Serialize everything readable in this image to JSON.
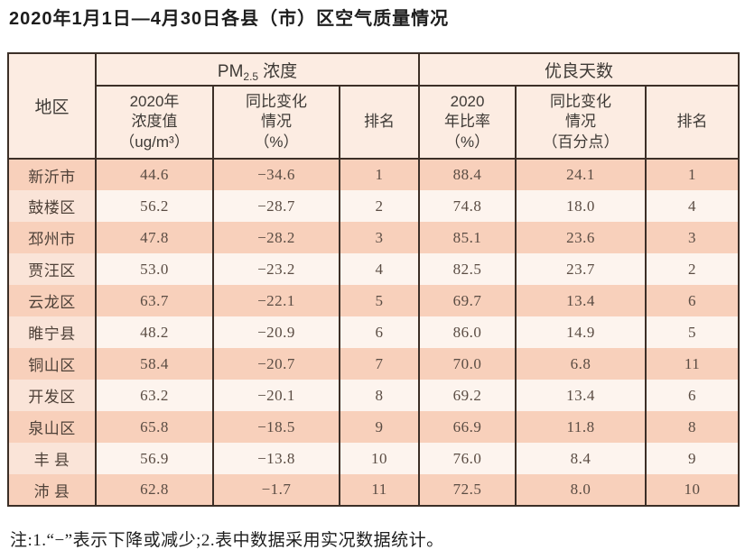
{
  "title": "2020年1月1日—4月30日各县（市）区空气质量情况",
  "header": {
    "region": "地区",
    "pm25_group": {
      "prefix": "PM",
      "subscript": "2.5",
      "suffix": "浓度"
    },
    "good_days_group": "优良天数",
    "pm25_value_lines": [
      "2020年",
      "浓度值",
      "（ug/m³）"
    ],
    "pm25_change_lines": [
      "同比变化",
      "情况",
      "（%）"
    ],
    "pm25_rank": "排名",
    "good_ratio_lines": [
      "2020",
      "年比率",
      "（%）"
    ],
    "good_change_lines": [
      "同比变化",
      "情况",
      "（百分点）"
    ],
    "good_rank": "排名"
  },
  "note": "注:1.“−”表示下降或减少;2.表中数据采用实况数据统计。",
  "colors": {
    "border": "#3c2f27",
    "header_bg": "#fcece2",
    "row_dark_bg": "#f8d0bb",
    "row_light_bg": "#fdf4ee",
    "row_light_first_col_bg": "#fae4d8",
    "data_text": "#5a4c43",
    "title_text": "#1d1d1d"
  },
  "chart_data": {
    "type": "table",
    "title": "2020年1月1日—4月30日各县（市）区空气质量情况",
    "column_groups": [
      "地区",
      "PM2.5浓度",
      "优良天数"
    ],
    "columns": [
      "地区",
      "2020年浓度值（ug/m³）",
      "同比变化情况（%）",
      "排名",
      "2020年比率（%）",
      "同比变化情况（百分点）",
      "排名"
    ],
    "rows": [
      {
        "region": "新沂市",
        "pm25": "44.6",
        "pm25_change": "−34.6",
        "pm25_rank": "1",
        "good_ratio": "88.4",
        "good_change": "24.1",
        "good_rank": "1"
      },
      {
        "region": "鼓楼区",
        "pm25": "56.2",
        "pm25_change": "−28.7",
        "pm25_rank": "2",
        "good_ratio": "74.8",
        "good_change": "18.0",
        "good_rank": "4"
      },
      {
        "region": "邳州市",
        "pm25": "47.8",
        "pm25_change": "−28.2",
        "pm25_rank": "3",
        "good_ratio": "85.1",
        "good_change": "23.6",
        "good_rank": "3"
      },
      {
        "region": "贾汪区",
        "pm25": "53.0",
        "pm25_change": "−23.2",
        "pm25_rank": "4",
        "good_ratio": "82.5",
        "good_change": "23.7",
        "good_rank": "2"
      },
      {
        "region": "云龙区",
        "pm25": "63.7",
        "pm25_change": "−22.1",
        "pm25_rank": "5",
        "good_ratio": "69.7",
        "good_change": "13.4",
        "good_rank": "6"
      },
      {
        "region": "睢宁县",
        "pm25": "48.2",
        "pm25_change": "−20.9",
        "pm25_rank": "6",
        "good_ratio": "86.0",
        "good_change": "14.9",
        "good_rank": "5"
      },
      {
        "region": "铜山区",
        "pm25": "58.4",
        "pm25_change": "−20.7",
        "pm25_rank": "7",
        "good_ratio": "70.0",
        "good_change": "6.8",
        "good_rank": "11"
      },
      {
        "region": "开发区",
        "pm25": "63.2",
        "pm25_change": "−20.1",
        "pm25_rank": "8",
        "good_ratio": "69.2",
        "good_change": "13.4",
        "good_rank": "6"
      },
      {
        "region": "泉山区",
        "pm25": "65.8",
        "pm25_change": "−18.5",
        "pm25_rank": "9",
        "good_ratio": "66.9",
        "good_change": "11.8",
        "good_rank": "8"
      },
      {
        "region": "丰 县",
        "pm25": "56.9",
        "pm25_change": "−13.8",
        "pm25_rank": "10",
        "good_ratio": "76.0",
        "good_change": "8.4",
        "good_rank": "9"
      },
      {
        "region": "沛 县",
        "pm25": "62.8",
        "pm25_change": "−1.7",
        "pm25_rank": "11",
        "good_ratio": "72.5",
        "good_change": "8.0",
        "good_rank": "10"
      }
    ]
  }
}
